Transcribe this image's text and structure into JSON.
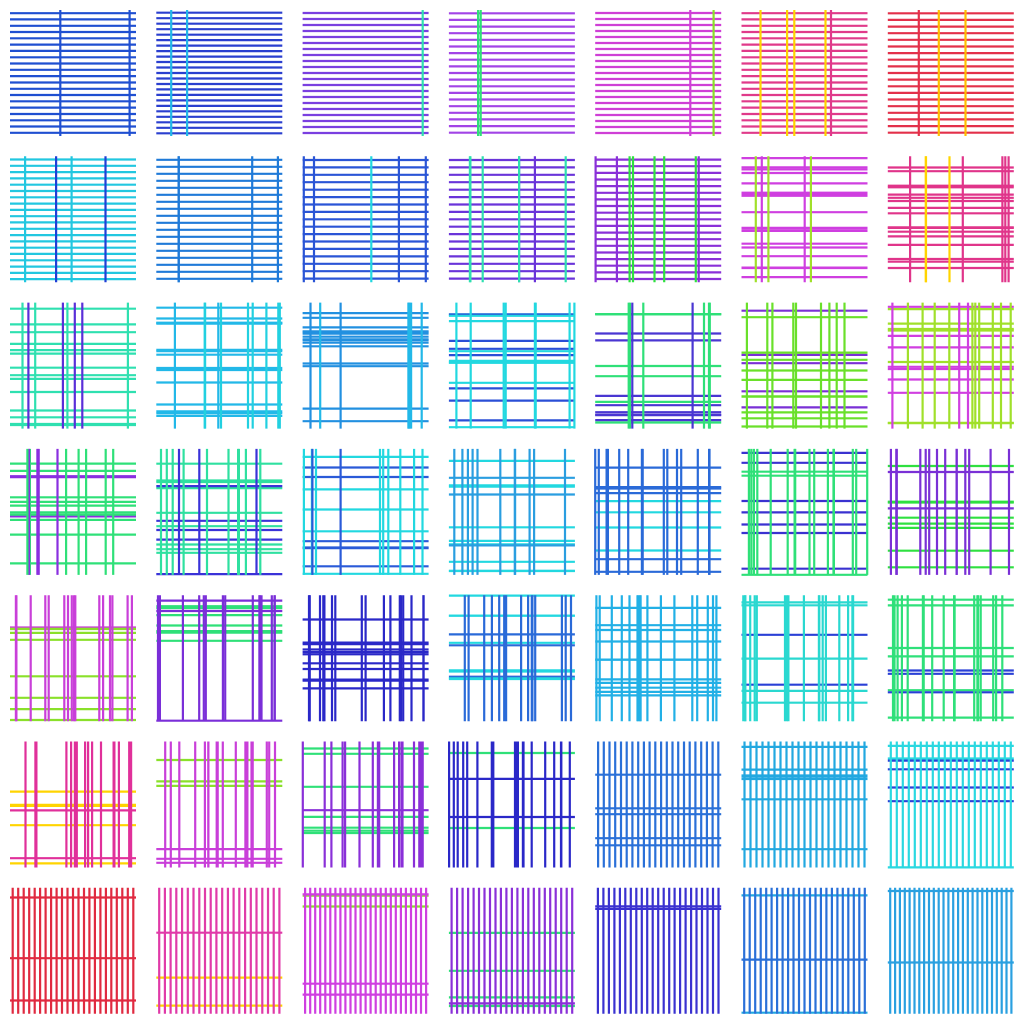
{
  "pattern": {
    "rows": 7,
    "columns": 7,
    "background": "#ffffff",
    "row_palettes": [
      [
        "#1f4fd1",
        "#2a3fcf",
        "#7a3fe0",
        "#a244e6",
        "#cf3fd6",
        "#e03a8a",
        "#e3304a"
      ],
      [
        "#22c7e0",
        "#1f7ad8",
        "#2a55d6",
        "#6a34d9",
        "#8a30d8",
        "#cf3fe0",
        "#e0358a"
      ],
      [
        "#2fe0b0",
        "#22b8e8",
        "#2290e0",
        "#2a4fd6",
        "#4a36d2",
        "#7a30d6",
        "#d03fe0"
      ],
      [
        "#8a2fe0",
        "#3a32d8",
        "#2a5ad8",
        "#2a9ee0",
        "#2a6ad8",
        "#2fe078",
        "#7a30d6"
      ],
      [
        "#c93fd9",
        "#7a2fd8",
        "#2a28c8",
        "#2a6ad8",
        "#22b0e6",
        "#2ad8d0",
        "#2fe07a"
      ],
      [
        "#e0309a",
        "#c93fd9",
        "#8a30d8",
        "#2a28c8",
        "#2a70d8",
        "#22a8e0",
        "#2ad8e0"
      ],
      [
        "#e02a40",
        "#e03aa8",
        "#cf3fe0",
        "#8a30d8",
        "#3a32d0",
        "#2a70d8",
        "#2aa0e0"
      ]
    ],
    "accent_palettes": [
      [
        "#1f4fd1",
        "#22b8e8",
        "#2fe0b0",
        "#2fe078",
        "#8ae02a",
        "#ffd400",
        "#ffbf00"
      ],
      [
        "#1f3fd6",
        "#1f7ad8",
        "#22d8e0",
        "#2fe0b0",
        "#2fe040",
        "#a0e02a",
        "#ffd400"
      ],
      [
        "#5a2fd8",
        "#22d0e0",
        "#22b8e8",
        "#22d8e0",
        "#2fe078",
        "#6ae02a",
        "#a0e02a"
      ],
      [
        "#2fe078",
        "#2fe0a0",
        "#22d8e0",
        "#22d8e0",
        "#22d8e0",
        "#3a32d0",
        "#2fe040"
      ],
      [
        "#8ae02a",
        "#2fe078",
        "#2a28c8",
        "#22d8e0",
        "#22b0e6",
        "#2a40d6",
        "#2a40d6"
      ],
      [
        "#ffd400",
        "#8ae02a",
        "#2fe078",
        "#2fe078",
        "#2a70d8",
        "#22a8e0",
        "#2a40d6"
      ],
      [
        "#e02a40",
        "#ffd400",
        "#8ae02a",
        "#2fe078",
        "#2a40d6",
        "#22a8e0",
        "#2aa0e0"
      ]
    ]
  }
}
